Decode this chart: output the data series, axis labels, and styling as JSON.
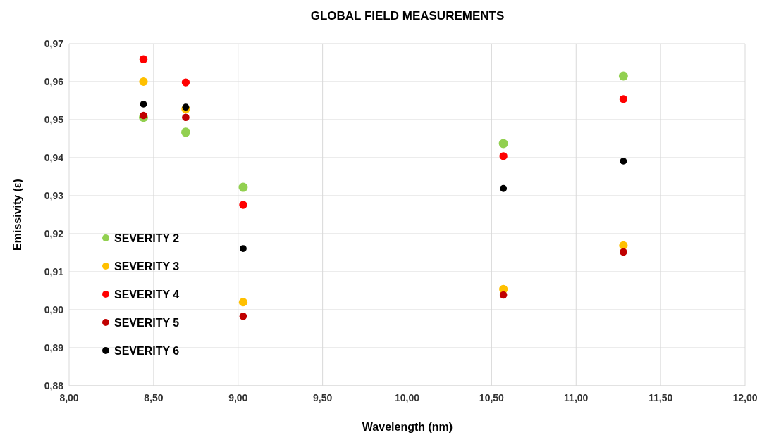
{
  "chart_data": {
    "type": "scatter",
    "title": "GLOBAL FIELD MEASUREMENTS",
    "xlabel": "Wavelength (nm)",
    "ylabel": "Emissivity (ε)",
    "x": [
      8.44,
      8.69,
      9.03,
      10.57,
      11.28
    ],
    "series": [
      {
        "name": "SEVERITY 2",
        "color": "#92d050",
        "values": [
          0.9506,
          0.9467,
          0.9322,
          0.9437,
          0.9615
        ]
      },
      {
        "name": "SEVERITY 3",
        "color": "#ffc000",
        "values": [
          0.96,
          0.9528,
          0.902,
          0.9054,
          0.9169
        ]
      },
      {
        "name": "SEVERITY 4",
        "color": "#ff0000",
        "values": [
          0.9659,
          0.9598,
          0.9276,
          0.9404,
          0.9554
        ]
      },
      {
        "name": "SEVERITY 5",
        "color": "#c00000",
        "values": [
          0.9511,
          0.9506,
          0.8983,
          0.9039,
          0.9152
        ]
      },
      {
        "name": "SEVERITY 6",
        "color": "#000000",
        "values": [
          0.9541,
          0.9533,
          0.9161,
          0.9319,
          0.9391
        ]
      }
    ],
    "xlim": [
      8,
      12
    ],
    "xticks": [
      {
        "value": 8,
        "label": "8,00"
      },
      {
        "value": 8.5,
        "label": "8,50"
      },
      {
        "value": 9,
        "label": "9,00"
      },
      {
        "value": 9.5,
        "label": "9,50"
      },
      {
        "value": 10,
        "label": "10,00"
      },
      {
        "value": 10.5,
        "label": "10,50"
      },
      {
        "value": 11,
        "label": "11,00"
      },
      {
        "value": 11.5,
        "label": "11,50"
      },
      {
        "value": 12,
        "label": "12,00"
      }
    ],
    "ylim": [
      0.88,
      0.97
    ],
    "yticks": [
      {
        "value": 0.88,
        "label": "0,88"
      },
      {
        "value": 0.89,
        "label": "0,89"
      },
      {
        "value": 0.9,
        "label": "0,90"
      },
      {
        "value": 0.91,
        "label": "0,91"
      },
      {
        "value": 0.92,
        "label": "0,92"
      },
      {
        "value": 0.93,
        "label": "0,93"
      },
      {
        "value": 0.94,
        "label": "0,94"
      },
      {
        "value": 0.95,
        "label": "0,95"
      },
      {
        "value": 0.96,
        "label": "0,96"
      },
      {
        "value": 0.97,
        "label": "0,97"
      }
    ],
    "grid": true,
    "legend": "bottom left",
    "marker": "circle"
  }
}
